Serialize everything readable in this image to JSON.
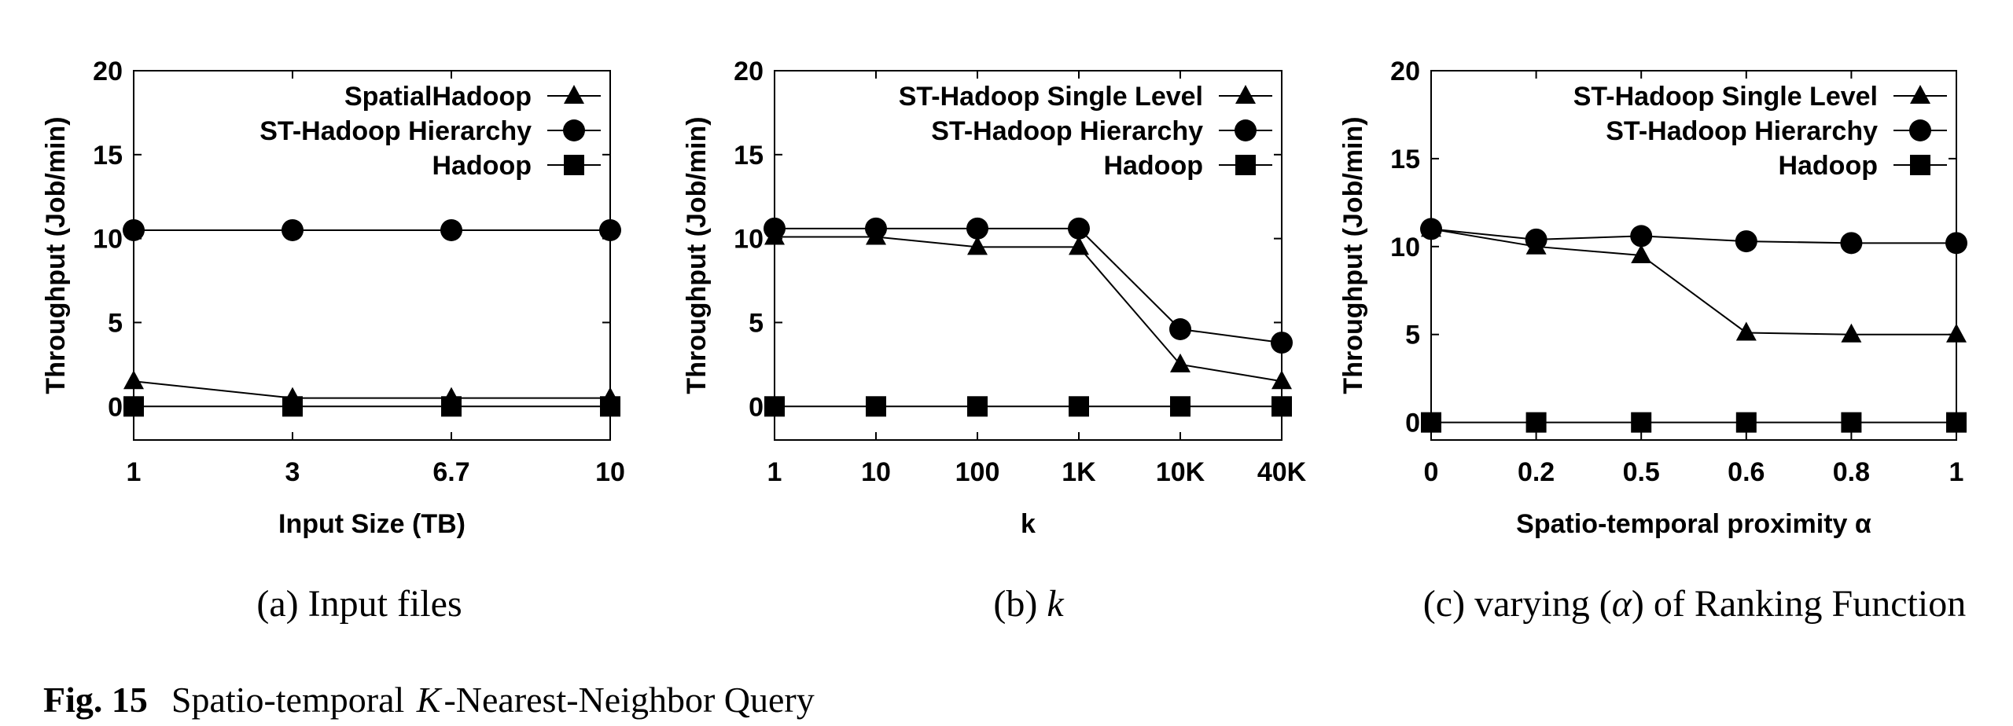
{
  "figure_caption": {
    "label": "Fig. 15",
    "text_before": "Spatio-temporal ",
    "text_italic": "K",
    "text_after": "-Nearest-Neighbor Query"
  },
  "chart_data": [
    {
      "type": "line",
      "caption_prefix": "(a) ",
      "caption_text": "Input files",
      "caption_italic": "",
      "caption_suffix": "",
      "xlabel": "Input Size (TB)",
      "ylabel": "Throughput (Job/min)",
      "x_scale": "categorical",
      "categories": [
        "1",
        "3",
        "6.7",
        "10"
      ],
      "ylim": [
        -2,
        20
      ],
      "yticks": [
        0,
        5,
        10,
        15,
        20
      ],
      "legend_position": "top-right",
      "series": [
        {
          "name": "SpatialHadoop",
          "marker": "triangle",
          "values": [
            1.5,
            0.5,
            0.5,
            0.5
          ]
        },
        {
          "name": "ST-Hadoop Hierarchy",
          "marker": "circle",
          "values": [
            10.5,
            10.5,
            10.5,
            10.5
          ]
        },
        {
          "name": "Hadoop",
          "marker": "square",
          "values": [
            0,
            0,
            0,
            0
          ]
        }
      ]
    },
    {
      "type": "line",
      "caption_prefix": "(b) ",
      "caption_text": "",
      "caption_italic": "k",
      "caption_suffix": "",
      "xlabel": "k",
      "ylabel": "Throughput (Job/min)",
      "x_scale": "categorical",
      "categories": [
        "1",
        "10",
        "100",
        "1K",
        "10K",
        "40K"
      ],
      "ylim": [
        -2,
        20
      ],
      "yticks": [
        0,
        5,
        10,
        15,
        20
      ],
      "legend_position": "top-right",
      "series": [
        {
          "name": "ST-Hadoop Single Level",
          "marker": "triangle",
          "values": [
            10.1,
            10.1,
            9.5,
            9.5,
            2.5,
            1.5
          ]
        },
        {
          "name": "ST-Hadoop Hierarchy",
          "marker": "circle",
          "values": [
            10.6,
            10.6,
            10.6,
            10.6,
            4.6,
            3.8
          ]
        },
        {
          "name": "Hadoop",
          "marker": "square",
          "values": [
            0,
            0,
            0,
            0,
            0,
            0
          ]
        }
      ]
    },
    {
      "type": "line",
      "caption_prefix": "(c) varying (",
      "caption_text": "",
      "caption_italic": "α",
      "caption_suffix": ") of Ranking Function",
      "xlabel": "Spatio-temporal proximity α",
      "ylabel": "Throughput (Job/min)",
      "x_scale": "categorical",
      "categories": [
        "0",
        "0.2",
        "0.5",
        "0.6",
        "0.8",
        "1"
      ],
      "ylim": [
        -1,
        20
      ],
      "yticks": [
        0,
        5,
        10,
        15,
        20
      ],
      "legend_position": "top-right",
      "series": [
        {
          "name": "ST-Hadoop Single Level",
          "marker": "triangle",
          "values": [
            11,
            10,
            9.5,
            5.1,
            5,
            5
          ]
        },
        {
          "name": "ST-Hadoop Hierarchy",
          "marker": "circle",
          "values": [
            11,
            10.4,
            10.6,
            10.3,
            10.2,
            10.2
          ]
        },
        {
          "name": "Hadoop",
          "marker": "square",
          "values": [
            0,
            0,
            0,
            0,
            0,
            0
          ]
        }
      ]
    }
  ]
}
